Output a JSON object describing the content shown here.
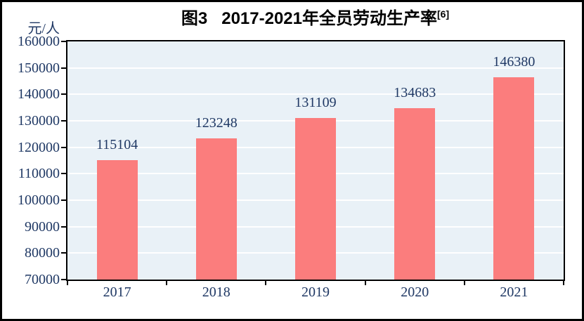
{
  "header": {
    "title_prefix": "图3",
    "title_main": "2017-2021年全员劳动生产率",
    "title_superscript": "[6]",
    "y_unit_label": "元/人"
  },
  "chart_data": {
    "type": "bar",
    "title": "图3 2017-2021年全员劳动生产率[6]",
    "ylabel": "元/人",
    "xlabel": "",
    "categories": [
      "2017",
      "2018",
      "2019",
      "2020",
      "2021"
    ],
    "values": [
      115104,
      123248,
      131109,
      134683,
      146380
    ],
    "ylim": [
      70000,
      160000
    ],
    "ytick_interval": 10000,
    "ytick_labels": [
      "70000",
      "80000",
      "90000",
      "100000",
      "110000",
      "120000",
      "130000",
      "140000",
      "150000",
      "160000"
    ],
    "grid": true,
    "legend": false,
    "colors": {
      "bar": "#fb7d7d",
      "plot_background": "#e9f1f7",
      "gridline": "#ffffff",
      "axis": "#000000",
      "label_text": "#1f3864",
      "title_text": "#000000",
      "frame": "#000000",
      "page_background": "#ffffff"
    }
  }
}
